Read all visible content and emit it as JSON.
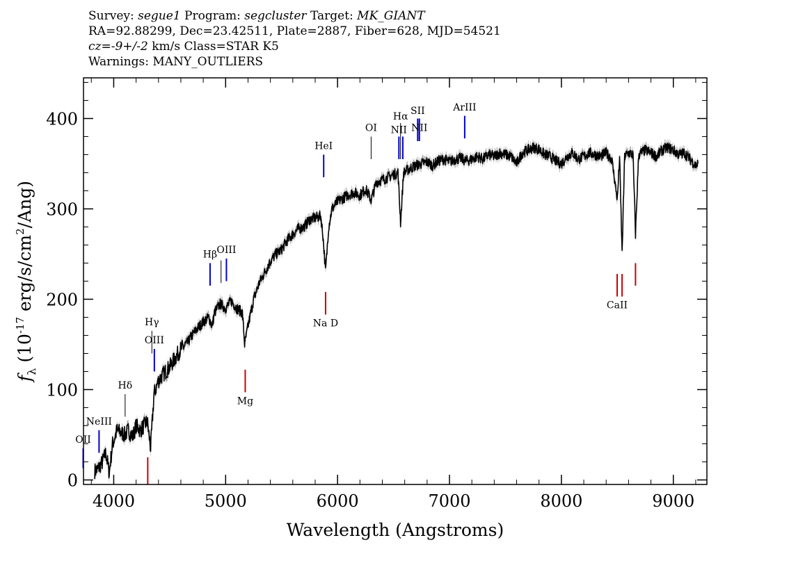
{
  "header": {
    "line1": {
      "survey_label": "Survey:",
      "survey": "segue1",
      "program_label": "Program:",
      "program": "segcluster",
      "target_label": "Target:",
      "target": "MK_GIANT"
    },
    "line2": "RA=92.88299, Dec=23.42511, Plate=2887, Fiber=628, MJD=54521",
    "line3": {
      "cz": "cz=-9+/-2",
      "rest": " km/s Class=STAR K5"
    },
    "line4": "Warnings: MANY_OUTLIERS"
  },
  "colors": {
    "emission": "#0000cc",
    "absorption": "#cc0000",
    "marker": "#000000",
    "spectrum": "#000000",
    "error_band": "#b0b0b0"
  },
  "chart_data": {
    "type": "line",
    "xlabel": "Wavelength (Angstroms)",
    "ylabel": "fλ (10^-17 erg/s/cm^2/Ang)",
    "ylabel_parts": {
      "f": "f",
      "lambda": "λ",
      "open": " (10",
      "exp1": "-17",
      "mid": " erg/s/cm",
      "exp2": "2",
      "close": "/Ang)"
    },
    "xlim": [
      3730,
      9300
    ],
    "ylim": [
      -5,
      445
    ],
    "xticks": [
      4000,
      5000,
      6000,
      7000,
      8000,
      9000
    ],
    "yticks": [
      0,
      100,
      200,
      300,
      400
    ],
    "spectrum": [
      [
        3830,
        10
      ],
      [
        3860,
        12
      ],
      [
        3900,
        20
      ],
      [
        3930,
        30
      ],
      [
        3960,
        8
      ],
      [
        3990,
        40
      ],
      [
        4030,
        55
      ],
      [
        4070,
        52
      ],
      [
        4100,
        50
      ],
      [
        4130,
        55
      ],
      [
        4170,
        48
      ],
      [
        4200,
        60
      ],
      [
        4240,
        55
      ],
      [
        4270,
        60
      ],
      [
        4300,
        65
      ],
      [
        4330,
        35
      ],
      [
        4360,
        95
      ],
      [
        4400,
        110
      ],
      [
        4450,
        118
      ],
      [
        4500,
        125
      ],
      [
        4550,
        135
      ],
      [
        4600,
        145
      ],
      [
        4650,
        150
      ],
      [
        4700,
        160
      ],
      [
        4750,
        168
      ],
      [
        4800,
        175
      ],
      [
        4850,
        180
      ],
      [
        4880,
        170
      ],
      [
        4900,
        185
      ],
      [
        4950,
        195
      ],
      [
        5000,
        190
      ],
      [
        5050,
        198
      ],
      [
        5100,
        190
      ],
      [
        5150,
        185
      ],
      [
        5170,
        150
      ],
      [
        5200,
        170
      ],
      [
        5250,
        200
      ],
      [
        5300,
        218
      ],
      [
        5350,
        230
      ],
      [
        5400,
        242
      ],
      [
        5450,
        250
      ],
      [
        5500,
        255
      ],
      [
        5550,
        265
      ],
      [
        5600,
        272
      ],
      [
        5650,
        278
      ],
      [
        5700,
        280
      ],
      [
        5750,
        288
      ],
      [
        5800,
        290
      ],
      [
        5850,
        292
      ],
      [
        5870,
        270
      ],
      [
        5893,
        230
      ],
      [
        5920,
        280
      ],
      [
        5950,
        300
      ],
      [
        6000,
        308
      ],
      [
        6050,
        312
      ],
      [
        6100,
        316
      ],
      [
        6150,
        318
      ],
      [
        6200,
        315
      ],
      [
        6250,
        322
      ],
      [
        6300,
        310
      ],
      [
        6350,
        330
      ],
      [
        6400,
        332
      ],
      [
        6450,
        335
      ],
      [
        6500,
        338
      ],
      [
        6540,
        340
      ],
      [
        6563,
        285
      ],
      [
        6590,
        340
      ],
      [
        6650,
        345
      ],
      [
        6700,
        348
      ],
      [
        6750,
        350
      ],
      [
        6800,
        352
      ],
      [
        6850,
        348
      ],
      [
        6900,
        353
      ],
      [
        6950,
        355
      ],
      [
        7000,
        352
      ],
      [
        7050,
        355
      ],
      [
        7100,
        356
      ],
      [
        7150,
        353
      ],
      [
        7200,
        355
      ],
      [
        7250,
        358
      ],
      [
        7300,
        355
      ],
      [
        7350,
        360
      ],
      [
        7400,
        358
      ],
      [
        7450,
        362
      ],
      [
        7500,
        360
      ],
      [
        7550,
        358
      ],
      [
        7600,
        350
      ],
      [
        7650,
        362
      ],
      [
        7700,
        365
      ],
      [
        7750,
        368
      ],
      [
        7800,
        366
      ],
      [
        7850,
        360
      ],
      [
        7900,
        358
      ],
      [
        7950,
        353
      ],
      [
        8000,
        350
      ],
      [
        8050,
        358
      ],
      [
        8100,
        362
      ],
      [
        8150,
        355
      ],
      [
        8200,
        358
      ],
      [
        8250,
        362
      ],
      [
        8300,
        360
      ],
      [
        8350,
        358
      ],
      [
        8400,
        362
      ],
      [
        8450,
        355
      ],
      [
        8500,
        310
      ],
      [
        8520,
        358
      ],
      [
        8542,
        250
      ],
      [
        8565,
        358
      ],
      [
        8600,
        362
      ],
      [
        8640,
        360
      ],
      [
        8662,
        272
      ],
      [
        8690,
        360
      ],
      [
        8750,
        365
      ],
      [
        8800,
        362
      ],
      [
        8850,
        358
      ],
      [
        8900,
        365
      ],
      [
        8950,
        368
      ],
      [
        9000,
        365
      ],
      [
        9050,
        360
      ],
      [
        9100,
        362
      ],
      [
        9150,
        355
      ],
      [
        9200,
        348
      ],
      [
        9220,
        350
      ]
    ],
    "lines": [
      {
        "label": "OII",
        "x": 3727,
        "y0": 13,
        "y1": 35,
        "kind": "emission",
        "label_y": 41
      },
      {
        "label": "NeIII",
        "x": 3869,
        "y0": 30,
        "y1": 55,
        "kind": "emission",
        "label_y": 61
      },
      {
        "label": "Hδ",
        "x": 4102,
        "y0": 70,
        "y1": 95,
        "kind": "marker",
        "label_y": 101
      },
      {
        "label": "Hγ",
        "x": 4341,
        "y0": 140,
        "y1": 165,
        "kind": "marker",
        "label_y": 171
      },
      {
        "label": "OIII",
        "x": 4363,
        "y0": 120,
        "y1": 145,
        "kind": "emission",
        "label_y": 151
      },
      {
        "label": "Hβ",
        "x": 4861,
        "y0": 215,
        "y1": 240,
        "kind": "emission",
        "label_y": 246
      },
      {
        "label": "OIII",
        "x": 4959,
        "y0": 218,
        "y1": 243,
        "kind": "marker",
        "label_y": 0
      },
      {
        "label": "OIII",
        "x": 5007,
        "y0": 220,
        "y1": 245,
        "kind": "emission",
        "label_y": 251
      },
      {
        "label": "HeI",
        "x": 5876,
        "y0": 335,
        "y1": 360,
        "kind": "emission",
        "label_y": 366
      },
      {
        "label": "OI",
        "x": 6300,
        "y0": 355,
        "y1": 380,
        "kind": "marker",
        "label_y": 386
      },
      {
        "label": "NII",
        "x": 6548,
        "y0": 355,
        "y1": 380,
        "kind": "emission",
        "label_y": 384
      },
      {
        "label": "Hα",
        "x": 6563,
        "y0": 355,
        "y1": 395,
        "kind": "marker",
        "label_y": 399
      },
      {
        "label": "NII",
        "x": 6583,
        "y0": 355,
        "y1": 380,
        "kind": "emission",
        "label_y": 0
      },
      {
        "label": "SII",
        "x": 6716,
        "y0": 375,
        "y1": 400,
        "kind": "emission",
        "label_y": 405
      },
      {
        "label": "NII",
        "x": 6731,
        "y0": 375,
        "y1": 400,
        "kind": "emission",
        "label_y": 386
      },
      {
        "label": "ArIII",
        "x": 7136,
        "y0": 378,
        "y1": 403,
        "kind": "emission",
        "label_y": 409
      },
      {
        "label": "",
        "x": 4304,
        "y0": -5,
        "y1": 25,
        "kind": "absorption",
        "label_y": 0
      },
      {
        "label": "Mg",
        "x": 5175,
        "y0": 97,
        "y1": 122,
        "kind": "absorption",
        "label_y": 84
      },
      {
        "label": "Na D",
        "x": 5893,
        "y0": 183,
        "y1": 208,
        "kind": "absorption",
        "label_y": 170
      },
      {
        "label": "CaII",
        "x": 8498,
        "y0": 203,
        "y1": 228,
        "kind": "absorption",
        "label_y": 190
      },
      {
        "label": "",
        "x": 8542,
        "y0": 203,
        "y1": 228,
        "kind": "absorption",
        "label_y": 0
      },
      {
        "label": "",
        "x": 8662,
        "y0": 215,
        "y1": 240,
        "kind": "absorption",
        "label_y": 0
      }
    ]
  }
}
